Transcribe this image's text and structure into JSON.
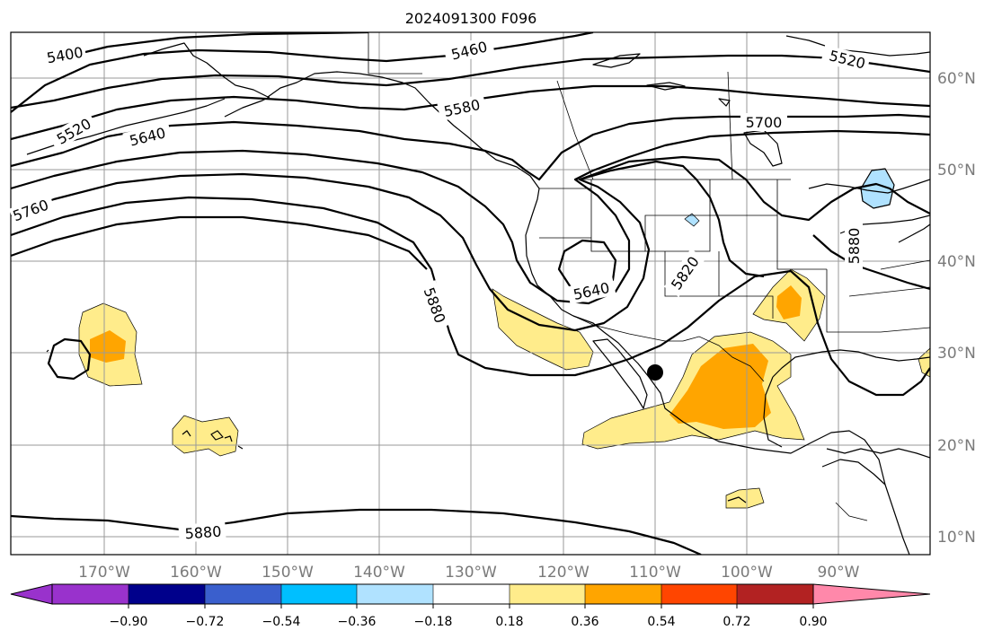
{
  "title": "2024091300 F096",
  "map": {
    "lon_labels": [
      "170°W",
      "160°W",
      "150°W",
      "140°W",
      "130°W",
      "120°W",
      "110°W",
      "100°W",
      "90°W"
    ],
    "lat_labels": [
      "60°N",
      "50°N",
      "40°N",
      "30°N",
      "20°N",
      "10°N"
    ],
    "contour_labels": [
      "5400",
      "5460",
      "5520",
      "5520",
      "5580",
      "5640",
      "5640",
      "5700",
      "5760",
      "5820",
      "5880",
      "5880",
      "5880"
    ],
    "marker": "storm-center-dot"
  },
  "colorbar": {
    "ticks": [
      "−0.90",
      "−0.72",
      "−0.54",
      "−0.36",
      "−0.18",
      "0.18",
      "0.36",
      "0.54",
      "0.72",
      "0.90"
    ],
    "colors": [
      "#9932CC",
      "#00008B",
      "#3A5FCD",
      "#00BFFF",
      "#B0E2FF",
      "#FFFFFF",
      "#FFEC8B",
      "#FFA500",
      "#FF4500",
      "#B22222",
      "#FF88AA"
    ]
  }
}
